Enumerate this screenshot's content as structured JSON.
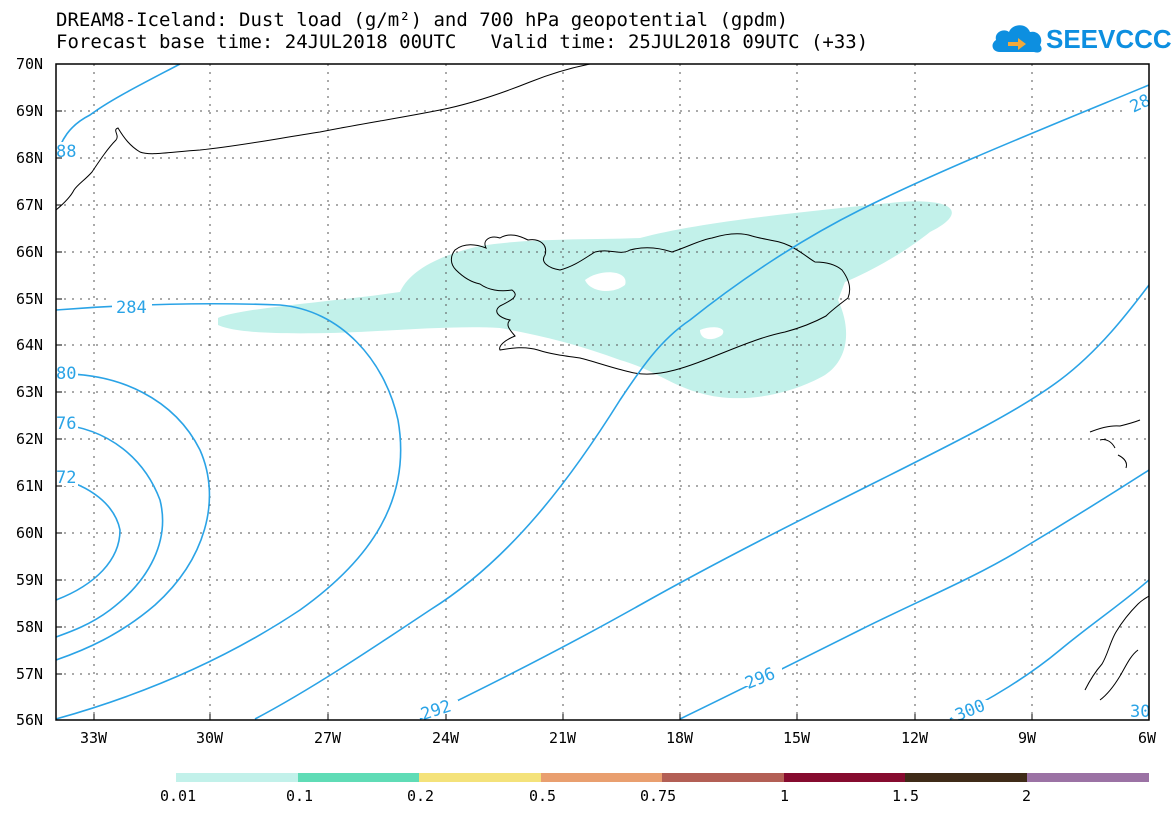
{
  "title": {
    "line1": "DREAM8-Iceland: Dust load (g/m²) and 700 hPa geopotential (gpdm)",
    "line2": "Forecast base time: 24JUL2018 00UTC   Valid time: 25JUL2018 09UTC (+33)"
  },
  "logo": {
    "text": "SEEVCCC",
    "icon": "cloud-icon",
    "color": "#0d8fe0"
  },
  "map": {
    "lat_labels": [
      "70N",
      "69N",
      "68N",
      "67N",
      "66N",
      "65N",
      "64N",
      "63N",
      "62N",
      "61N",
      "60N",
      "59N",
      "58N",
      "57N",
      "56N"
    ],
    "lon_labels": [
      "33W",
      "30W",
      "27W",
      "24W",
      "21W",
      "18W",
      "15W",
      "12W",
      "9W",
      "6W"
    ],
    "contour_labels": [
      "284",
      "80",
      "76",
      "72",
      "88",
      "28",
      "292",
      "296",
      "300",
      "30"
    ],
    "contour_color": "#2aa3e6",
    "dust_color": "#c2f1ea",
    "coast_color": "#000000"
  },
  "colorbar": {
    "colors": [
      "#c2f1ea",
      "#5fdcb6",
      "#f4e27a",
      "#e99f6f",
      "#b35f55",
      "#a14942",
      "#860b2f",
      "#3f2b18",
      "#9b72a4"
    ],
    "labels": [
      "0.01",
      "0.1",
      "0.2",
      "0.5",
      "0.75",
      "1",
      "1.5",
      "2"
    ]
  }
}
